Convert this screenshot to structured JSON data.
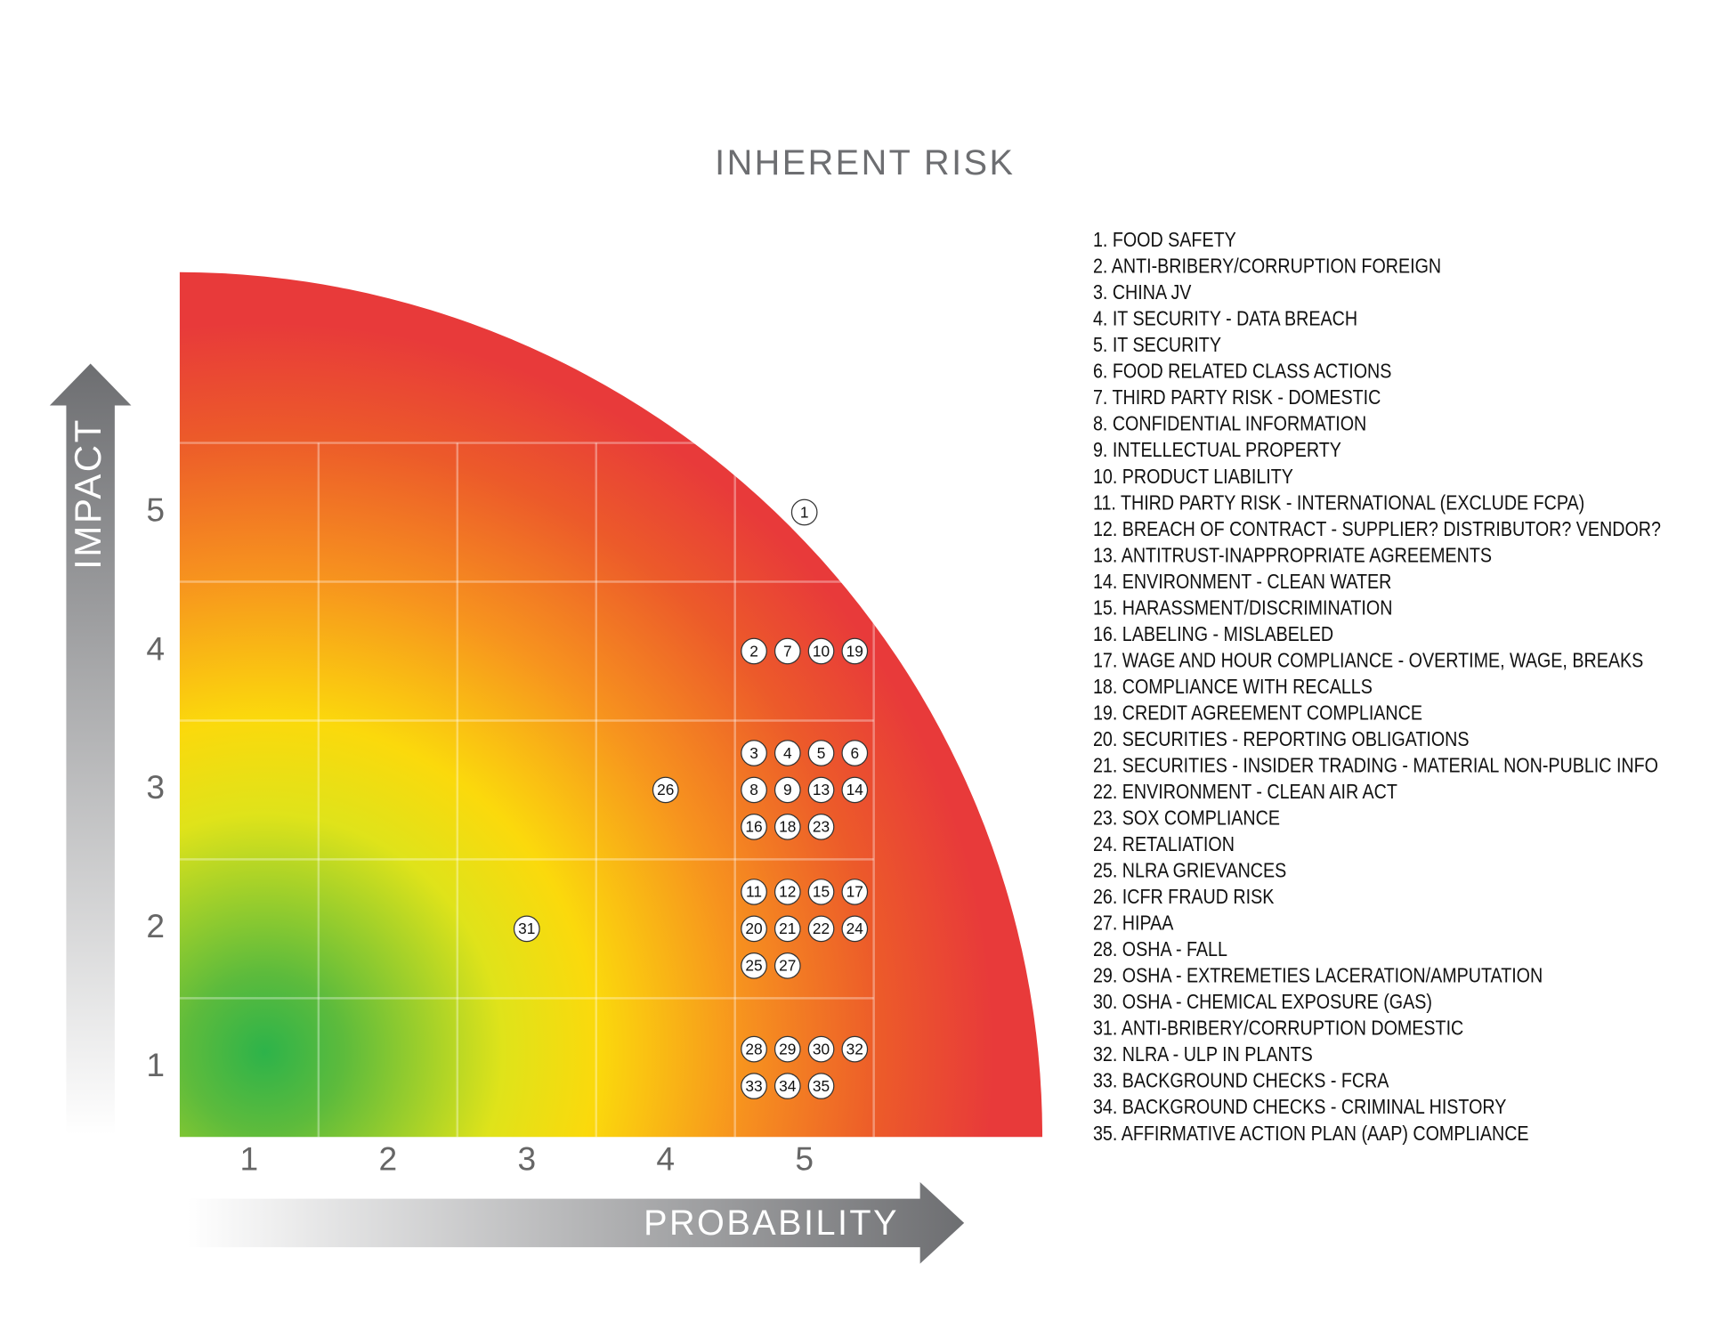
{
  "title": "INHERENT RISK",
  "x_axis": {
    "label": "PROBABILITY",
    "ticks": [
      1,
      2,
      3,
      4,
      5
    ]
  },
  "y_axis": {
    "label": "IMPACT",
    "ticks": [
      1,
      2,
      3,
      4,
      5
    ]
  },
  "markers": [
    {
      "label": "1",
      "probability": 5,
      "impact": 5
    },
    {
      "label": "2",
      "probability": 5,
      "impact": 4
    },
    {
      "label": "7",
      "probability": 5,
      "impact": 4
    },
    {
      "label": "10",
      "probability": 5,
      "impact": 4
    },
    {
      "label": "19",
      "probability": 5,
      "impact": 4
    },
    {
      "label": "3",
      "probability": 5,
      "impact": 3
    },
    {
      "label": "4",
      "probability": 5,
      "impact": 3
    },
    {
      "label": "5",
      "probability": 5,
      "impact": 3
    },
    {
      "label": "6",
      "probability": 5,
      "impact": 3
    },
    {
      "label": "8",
      "probability": 5,
      "impact": 3
    },
    {
      "label": "9",
      "probability": 5,
      "impact": 3
    },
    {
      "label": "13",
      "probability": 5,
      "impact": 3
    },
    {
      "label": "14",
      "probability": 5,
      "impact": 3
    },
    {
      "label": "16",
      "probability": 5,
      "impact": 3
    },
    {
      "label": "18",
      "probability": 5,
      "impact": 3
    },
    {
      "label": "23",
      "probability": 5,
      "impact": 3
    },
    {
      "label": "26",
      "probability": 4,
      "impact": 3
    },
    {
      "label": "11",
      "probability": 5,
      "impact": 2
    },
    {
      "label": "12",
      "probability": 5,
      "impact": 2
    },
    {
      "label": "15",
      "probability": 5,
      "impact": 2
    },
    {
      "label": "17",
      "probability": 5,
      "impact": 2
    },
    {
      "label": "20",
      "probability": 5,
      "impact": 2
    },
    {
      "label": "21",
      "probability": 5,
      "impact": 2
    },
    {
      "label": "22",
      "probability": 5,
      "impact": 2
    },
    {
      "label": "24",
      "probability": 5,
      "impact": 2
    },
    {
      "label": "25",
      "probability": 5,
      "impact": 2
    },
    {
      "label": "27",
      "probability": 5,
      "impact": 2
    },
    {
      "label": "31",
      "probability": 3,
      "impact": 2
    },
    {
      "label": "28",
      "probability": 5,
      "impact": 1
    },
    {
      "label": "29",
      "probability": 5,
      "impact": 1
    },
    {
      "label": "30",
      "probability": 5,
      "impact": 1
    },
    {
      "label": "32",
      "probability": 5,
      "impact": 1
    },
    {
      "label": "33",
      "probability": 5,
      "impact": 1
    },
    {
      "label": "34",
      "probability": 5,
      "impact": 1
    },
    {
      "label": "35",
      "probability": 5,
      "impact": 1
    }
  ],
  "legend": [
    "1. FOOD SAFETY",
    "2. ANTI-BRIBERY/CORRUPTION FOREIGN",
    "3. CHINA JV",
    "4. IT SECURITY - DATA BREACH",
    "5. IT SECURITY",
    "6. FOOD RELATED CLASS ACTIONS",
    "7. THIRD PARTY RISK - DOMESTIC",
    "8. CONFIDENTIAL INFORMATION",
    "9. INTELLECTUAL PROPERTY",
    "10. PRODUCT LIABILITY",
    "11. THIRD PARTY RISK - INTERNATIONAL (EXCLUDE FCPA)",
    "12. BREACH OF CONTRACT - SUPPLIER? DISTRIBUTOR? VENDOR?",
    "13. ANTITRUST-INAPPROPRIATE AGREEMENTS",
    "14. ENVIRONMENT - CLEAN WATER",
    "15. HARASSMENT/DISCRIMINATION",
    "16. LABELING - MISLABELED",
    "17. WAGE AND HOUR COMPLIANCE - OVERTIME, WAGE, BREAKS",
    "18. COMPLIANCE WITH RECALLS",
    "19. CREDIT AGREEMENT COMPLIANCE",
    "20. SECURITIES - REPORTING OBLIGATIONS",
    "21. SECURITIES - INSIDER TRADING - MATERIAL NON-PUBLIC INFO",
    "22. ENVIRONMENT - CLEAN AIR ACT",
    "23. SOX COMPLIANCE",
    "24. RETALIATION",
    "25. NLRA GRIEVANCES",
    "26. ICFR FRAUD RISK",
    "27. HIPAA",
    "28. OSHA - FALL",
    "29. OSHA - EXTREMETIES LACERATION/AMPUTATION",
    "30. OSHA - CHEMICAL EXPOSURE (GAS)",
    "31. ANTI-BRIBERY/CORRUPTION DOMESTIC",
    "32. NLRA - ULP IN PLANTS",
    "33. BACKGROUND CHECKS - FCRA",
    "34. BACKGROUND CHECKS - CRIMINAL HISTORY",
    "35. AFFIRMATIVE ACTION PLAN (AAP) COMPLIANCE"
  ]
}
